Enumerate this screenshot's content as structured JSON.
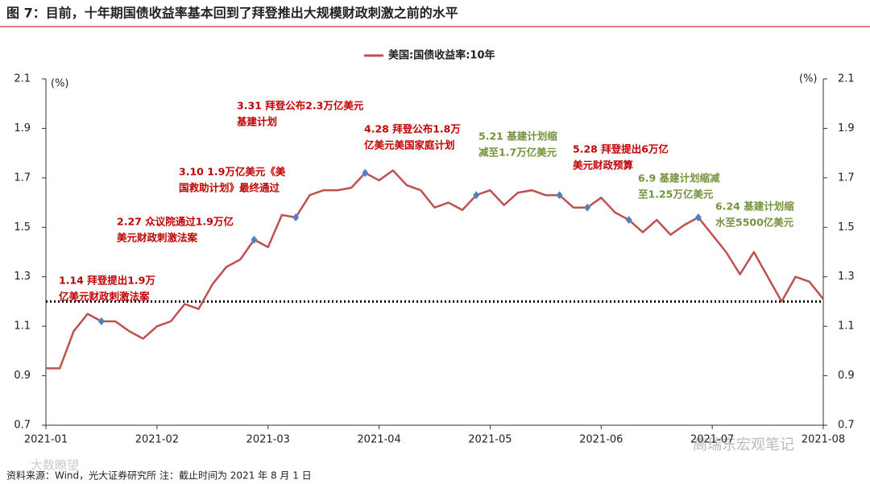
{
  "chart_data": {
    "type": "line",
    "title": "图 7：目前，十年期国债收益率基本回到了拜登推出大规模财政刺激之前的水平",
    "source": "资料来源：Wind，光大证券研究所 注：截止时间为 2021 年 8 月 1 日",
    "watermarks": [
      "高瑞东宏观笔记",
      "大数瞭望"
    ],
    "y_unit": "(%)",
    "y2_unit": "(%)",
    "categories": [
      "2021-01",
      null,
      null,
      null,
      null,
      null,
      null,
      null,
      "2021-02",
      null,
      null,
      null,
      null,
      null,
      null,
      null,
      "2021-03",
      null,
      null,
      null,
      null,
      null,
      null,
      null,
      "2021-04",
      null,
      null,
      null,
      null,
      null,
      null,
      null,
      "2021-05",
      null,
      null,
      null,
      null,
      null,
      null,
      null,
      "2021-06",
      null,
      null,
      null,
      null,
      null,
      null,
      null,
      "2021-07",
      null,
      null,
      null,
      null,
      null,
      null,
      null,
      "2021-08"
    ],
    "series": [
      {
        "name": "美国:国债收益率:10年",
        "color": "#c0504d",
        "values": [
          0.93,
          0.93,
          1.08,
          1.15,
          1.12,
          1.12,
          1.08,
          1.05,
          1.1,
          1.12,
          1.19,
          1.17,
          1.27,
          1.34,
          1.37,
          1.45,
          1.42,
          1.55,
          1.54,
          1.63,
          1.65,
          1.65,
          1.66,
          1.72,
          1.69,
          1.73,
          1.67,
          1.65,
          1.58,
          1.6,
          1.57,
          1.63,
          1.65,
          1.59,
          1.64,
          1.65,
          1.63,
          1.63,
          1.58,
          1.58,
          1.62,
          1.56,
          1.53,
          1.48,
          1.53,
          1.47,
          1.51,
          1.54,
          1.47,
          1.4,
          1.31,
          1.4,
          1.3,
          1.2,
          1.3,
          1.28,
          1.21
        ]
      }
    ],
    "hline": 1.2,
    "marker_color": "#4f81bd",
    "ylim": [
      0.7,
      2.1
    ],
    "yticks": [
      0.7,
      0.9,
      1.1,
      1.3,
      1.5,
      1.7,
      1.9,
      2.1
    ],
    "y2lim": [
      0.7,
      2.1
    ],
    "y2ticks": [
      0.7,
      0.9,
      1.1,
      1.3,
      1.5,
      1.7,
      1.9,
      2.1
    ],
    "legend": "top",
    "annotations": [
      {
        "lines": [
          "1.14 拜登提出1.9万",
          "亿美元财政刺激法案"
        ],
        "color": "#c00000"
      },
      {
        "lines": [
          "2.27 众议院通过1.9万亿",
          "美元财政刺激法案"
        ],
        "color": "#c00000"
      },
      {
        "lines": [
          "3.10 1.9万亿美元《美",
          "国救助计划》最终通过"
        ],
        "color": "#c00000"
      },
      {
        "lines": [
          "3.31 拜登公布2.3万亿美元",
          "基建计划"
        ],
        "color": "#c00000"
      },
      {
        "lines": [
          "4.28 拜登公布1.8万",
          "亿美元美国家庭计划"
        ],
        "color": "#c00000"
      },
      {
        "lines": [
          "5.21 基建计划缩",
          "减至1.7万亿美元"
        ],
        "color": "#76923c"
      },
      {
        "lines": [
          "5.28 拜登提出6万亿",
          "美元财政预算"
        ],
        "color": "#c00000"
      },
      {
        "lines": [
          "6.9 基建计划缩减",
          "至1.25万亿美元"
        ],
        "color": "#76923c"
      },
      {
        "lines": [
          "6.24 基建计划缩",
          "水至5500亿美元"
        ],
        "color": "#76923c"
      }
    ]
  }
}
